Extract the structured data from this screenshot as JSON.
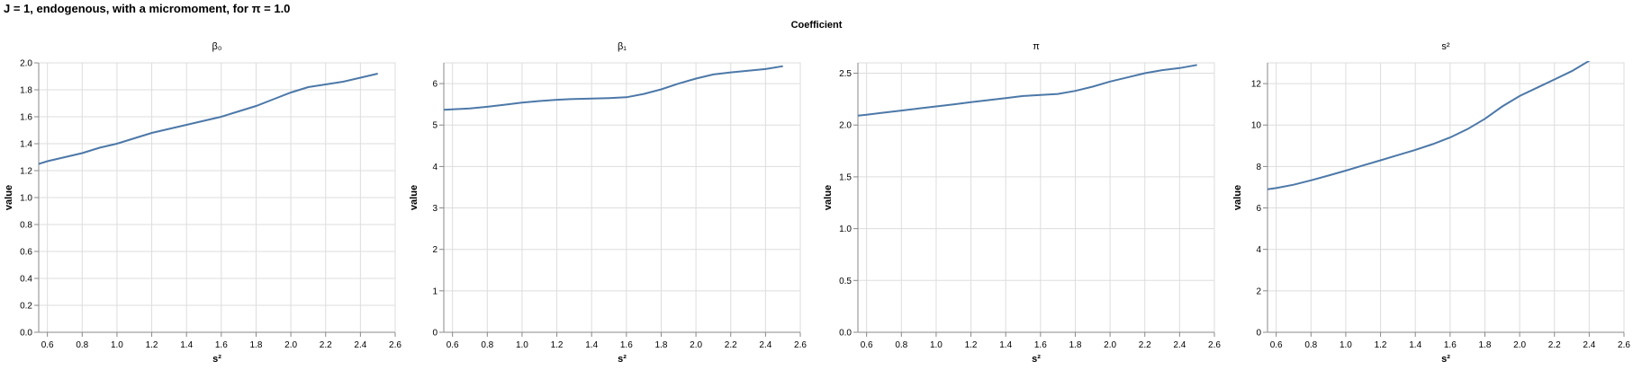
{
  "title": "J = 1, endogenous, with a micromoment,  for π = 1.0",
  "facet_header": "Coefficient",
  "chart_data": [
    {
      "type": "line",
      "title": "β₀",
      "xlabel": "s²",
      "ylabel": "value",
      "xlim": [
        0.55,
        2.6
      ],
      "ylim": [
        0,
        2.0
      ],
      "xticks": [
        "0.6",
        "0.8",
        "1.0",
        "1.2",
        "1.4",
        "1.6",
        "1.8",
        "2.0",
        "2.2",
        "2.4",
        "2.6"
      ],
      "yticks": [
        "0.0",
        "0.2",
        "0.4",
        "0.6",
        "0.8",
        "1.0",
        "1.2",
        "1.4",
        "1.6",
        "1.8",
        "2.0"
      ],
      "x": [
        0.55,
        0.6,
        0.7,
        0.8,
        0.9,
        1.0,
        1.1,
        1.2,
        1.3,
        1.4,
        1.5,
        1.6,
        1.7,
        1.8,
        1.9,
        2.0,
        2.1,
        2.2,
        2.3,
        2.4,
        2.5
      ],
      "values": [
        1.25,
        1.27,
        1.3,
        1.33,
        1.37,
        1.4,
        1.44,
        1.48,
        1.51,
        1.54,
        1.57,
        1.6,
        1.64,
        1.68,
        1.73,
        1.78,
        1.82,
        1.84,
        1.86,
        1.89,
        1.92
      ],
      "grid": true,
      "color": "#4c78a8"
    },
    {
      "type": "line",
      "title": "β₁",
      "xlabel": "s²",
      "ylabel": "value",
      "xlim": [
        0.55,
        2.6
      ],
      "ylim": [
        0,
        6.5
      ],
      "xticks": [
        "0.6",
        "0.8",
        "1.0",
        "1.2",
        "1.4",
        "1.6",
        "1.8",
        "2.0",
        "2.2",
        "2.4",
        "2.6"
      ],
      "yticks": [
        "0",
        "1",
        "2",
        "3",
        "4",
        "5",
        "6"
      ],
      "x": [
        0.55,
        0.6,
        0.7,
        0.8,
        0.9,
        1.0,
        1.1,
        1.2,
        1.3,
        1.4,
        1.5,
        1.6,
        1.7,
        1.8,
        1.9,
        2.0,
        2.1,
        2.2,
        2.3,
        2.4,
        2.5
      ],
      "values": [
        5.37,
        5.38,
        5.4,
        5.44,
        5.49,
        5.54,
        5.58,
        5.61,
        5.63,
        5.64,
        5.65,
        5.67,
        5.75,
        5.86,
        6.0,
        6.12,
        6.22,
        6.27,
        6.31,
        6.35,
        6.42
      ],
      "grid": true,
      "color": "#4c78a8"
    },
    {
      "type": "line",
      "title": "π",
      "xlabel": "s²",
      "ylabel": "value",
      "xlim": [
        0.55,
        2.6
      ],
      "ylim": [
        0,
        2.6
      ],
      "xticks": [
        "0.6",
        "0.8",
        "1.0",
        "1.2",
        "1.4",
        "1.6",
        "1.8",
        "2.0",
        "2.2",
        "2.4",
        "2.6"
      ],
      "yticks": [
        "0.0",
        "0.5",
        "1.0",
        "1.5",
        "2.0",
        "2.5"
      ],
      "x": [
        0.55,
        0.6,
        0.7,
        0.8,
        0.9,
        1.0,
        1.1,
        1.2,
        1.3,
        1.4,
        1.5,
        1.6,
        1.7,
        1.8,
        1.9,
        2.0,
        2.1,
        2.2,
        2.3,
        2.4,
        2.5
      ],
      "values": [
        2.09,
        2.1,
        2.12,
        2.14,
        2.16,
        2.18,
        2.2,
        2.22,
        2.24,
        2.26,
        2.28,
        2.29,
        2.3,
        2.33,
        2.37,
        2.42,
        2.46,
        2.5,
        2.53,
        2.55,
        2.58
      ],
      "grid": true,
      "color": "#4c78a8"
    },
    {
      "type": "line",
      "title": "s²",
      "xlabel": "s²",
      "ylabel": "value",
      "xlim": [
        0.55,
        2.6
      ],
      "ylim": [
        0,
        13
      ],
      "xticks": [
        "0.6",
        "0.8",
        "1.0",
        "1.2",
        "1.4",
        "1.6",
        "1.8",
        "2.0",
        "2.2",
        "2.4",
        "2.6"
      ],
      "yticks": [
        "0",
        "2",
        "4",
        "6",
        "8",
        "10",
        "12"
      ],
      "x": [
        0.55,
        0.6,
        0.7,
        0.8,
        0.9,
        1.0,
        1.1,
        1.2,
        1.3,
        1.4,
        1.5,
        1.6,
        1.7,
        1.8,
        1.9,
        2.0,
        2.1,
        2.2,
        2.3,
        2.4,
        2.5
      ],
      "values": [
        6.9,
        6.96,
        7.12,
        7.33,
        7.56,
        7.8,
        8.05,
        8.3,
        8.55,
        8.8,
        9.08,
        9.4,
        9.8,
        10.3,
        10.9,
        11.4,
        11.8,
        12.2,
        12.6,
        13.1,
        13.6
      ],
      "grid": true,
      "color": "#4c78a8"
    }
  ]
}
